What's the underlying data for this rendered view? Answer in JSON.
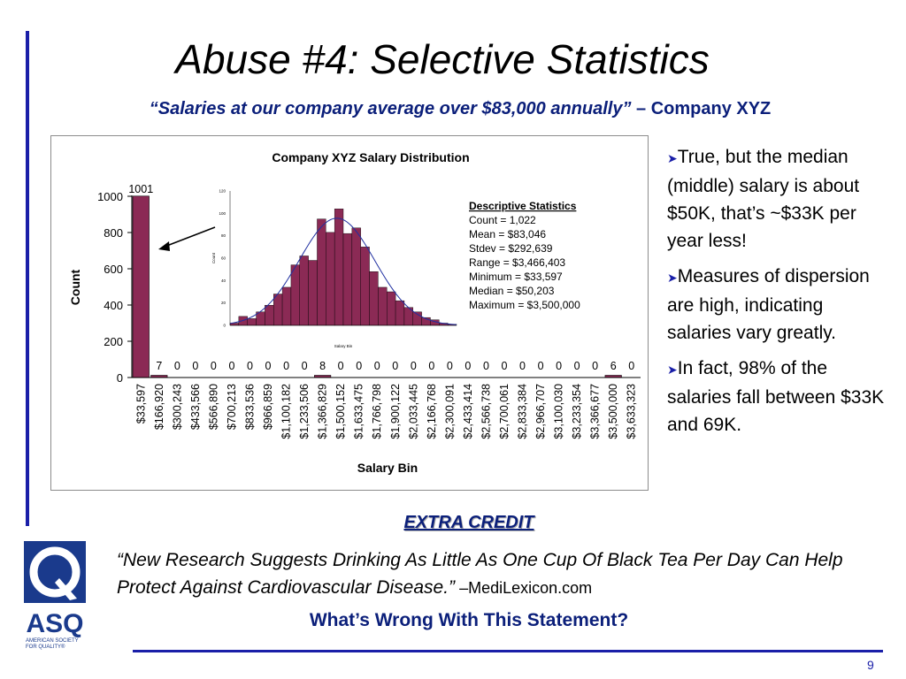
{
  "slide": {
    "title": "Abuse #4: Selective Statistics",
    "subtitle_quote": "“Salaries at our company average over $83,000 annually”",
    "subtitle_source": " – Company XYZ",
    "bullets": [
      "True, but the median (middle) salary is about $50K, that’s ~$33K per year less!",
      "Measures of dispersion are high, indicating salaries vary greatly.",
      "In fact, 98% of the salaries fall between $33K and 69K."
    ],
    "extra_credit": "EXTRA CREDIT",
    "quote": "“New Research Suggests Drinking As Little As One Cup Of Black Tea Per Day Can Help Protect Against Cardiovascular Disease.”",
    "quote_source": " –MediLexicon.com",
    "question": "What’s Wrong With This Statement?",
    "page_number": "9",
    "logo": {
      "text": "ASQ",
      "subtext": "AMERICAN SOCIETY FOR QUALITY®",
      "color": "#1a3a8c"
    }
  },
  "colors": {
    "bar": "#8b2a55",
    "accent": "#1a1fa8",
    "heading": "#0b1f7a",
    "normal_curve": "#1f2fa0"
  },
  "chart_data": [
    {
      "type": "bar",
      "title": "Company XYZ Salary Distribution",
      "xlabel": "Salary Bin",
      "ylabel": "Count",
      "ylim": [
        0,
        1000
      ],
      "yticks": [
        0,
        200,
        400,
        600,
        800,
        1000
      ],
      "categories": [
        "$33,597",
        "$166,920",
        "$300,243",
        "$433,566",
        "$566,890",
        "$700,213",
        "$833,536",
        "$966,859",
        "$1,100,182",
        "$1,233,506",
        "$1,366,829",
        "$1,500,152",
        "$1,633,475",
        "$1,766,798",
        "$1,900,122",
        "$2,033,445",
        "$2,166,768",
        "$2,300,091",
        "$2,433,414",
        "$2,566,738",
        "$2,700,061",
        "$2,833,384",
        "$2,966,707",
        "$3,100,030",
        "$3,233,354",
        "$3,366,677",
        "$3,500,000",
        "$3,633,323"
      ],
      "values": [
        1001,
        7,
        0,
        0,
        0,
        0,
        0,
        0,
        0,
        0,
        8,
        0,
        0,
        0,
        0,
        0,
        0,
        0,
        0,
        0,
        0,
        0,
        0,
        0,
        0,
        0,
        6,
        0
      ],
      "data_labels": [
        "1001",
        "7",
        "0",
        "0",
        "0",
        "0",
        "0",
        "0",
        "0",
        "0",
        "8",
        "0",
        "0",
        "0",
        "0",
        "0",
        "0",
        "0",
        "0",
        "0",
        "0",
        "0",
        "0",
        "0",
        "0",
        "0",
        "6",
        "0"
      ],
      "grid": false,
      "legend": "none"
    },
    {
      "type": "bar",
      "title": "",
      "xlabel": "Salary Bin",
      "ylabel": "Count",
      "ylim": [
        0,
        120
      ],
      "yticks": [
        0,
        20,
        40,
        60,
        80,
        100,
        120
      ],
      "values": [
        2,
        8,
        6,
        12,
        18,
        28,
        34,
        54,
        62,
        58,
        95,
        83,
        104,
        82,
        87,
        70,
        48,
        34,
        30,
        22,
        16,
        12,
        7,
        5,
        2,
        1
      ],
      "normal_curve": true,
      "legend": "none"
    }
  ],
  "descriptive_stats": {
    "heading": "Descriptive Statistics",
    "lines": [
      "Count = 1,022",
      "Mean = $83,046",
      "Stdev = $292,639",
      "Range = $3,466,403",
      "Minimum = $33,597",
      "Median = $50,203",
      "Maximum = $3,500,000"
    ]
  }
}
